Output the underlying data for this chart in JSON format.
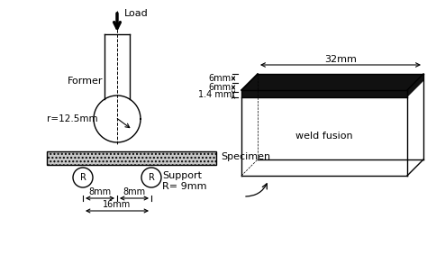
{
  "bg_color": "#ffffff",
  "line_color": "#000000",
  "specimen_fill": "#c8c8c8",
  "weld_color": "#111111",
  "labels": {
    "load": "Load",
    "former": "Former",
    "r_former": "r=12.5mm",
    "specimen": "Specimen",
    "support": "Support",
    "R_support": "R= 9mm",
    "8mm_left": "8mm",
    "8mm_right": "8mm",
    "16mm": "16mm",
    "weld_fusion": "weld fusion",
    "32mm": "32mm",
    "6mm_top": "6mm",
    "6mm_bot": "6mm",
    "1_4mm": "1.4 mm"
  },
  "figsize": [
    4.74,
    2.83
  ],
  "dpi": 100
}
